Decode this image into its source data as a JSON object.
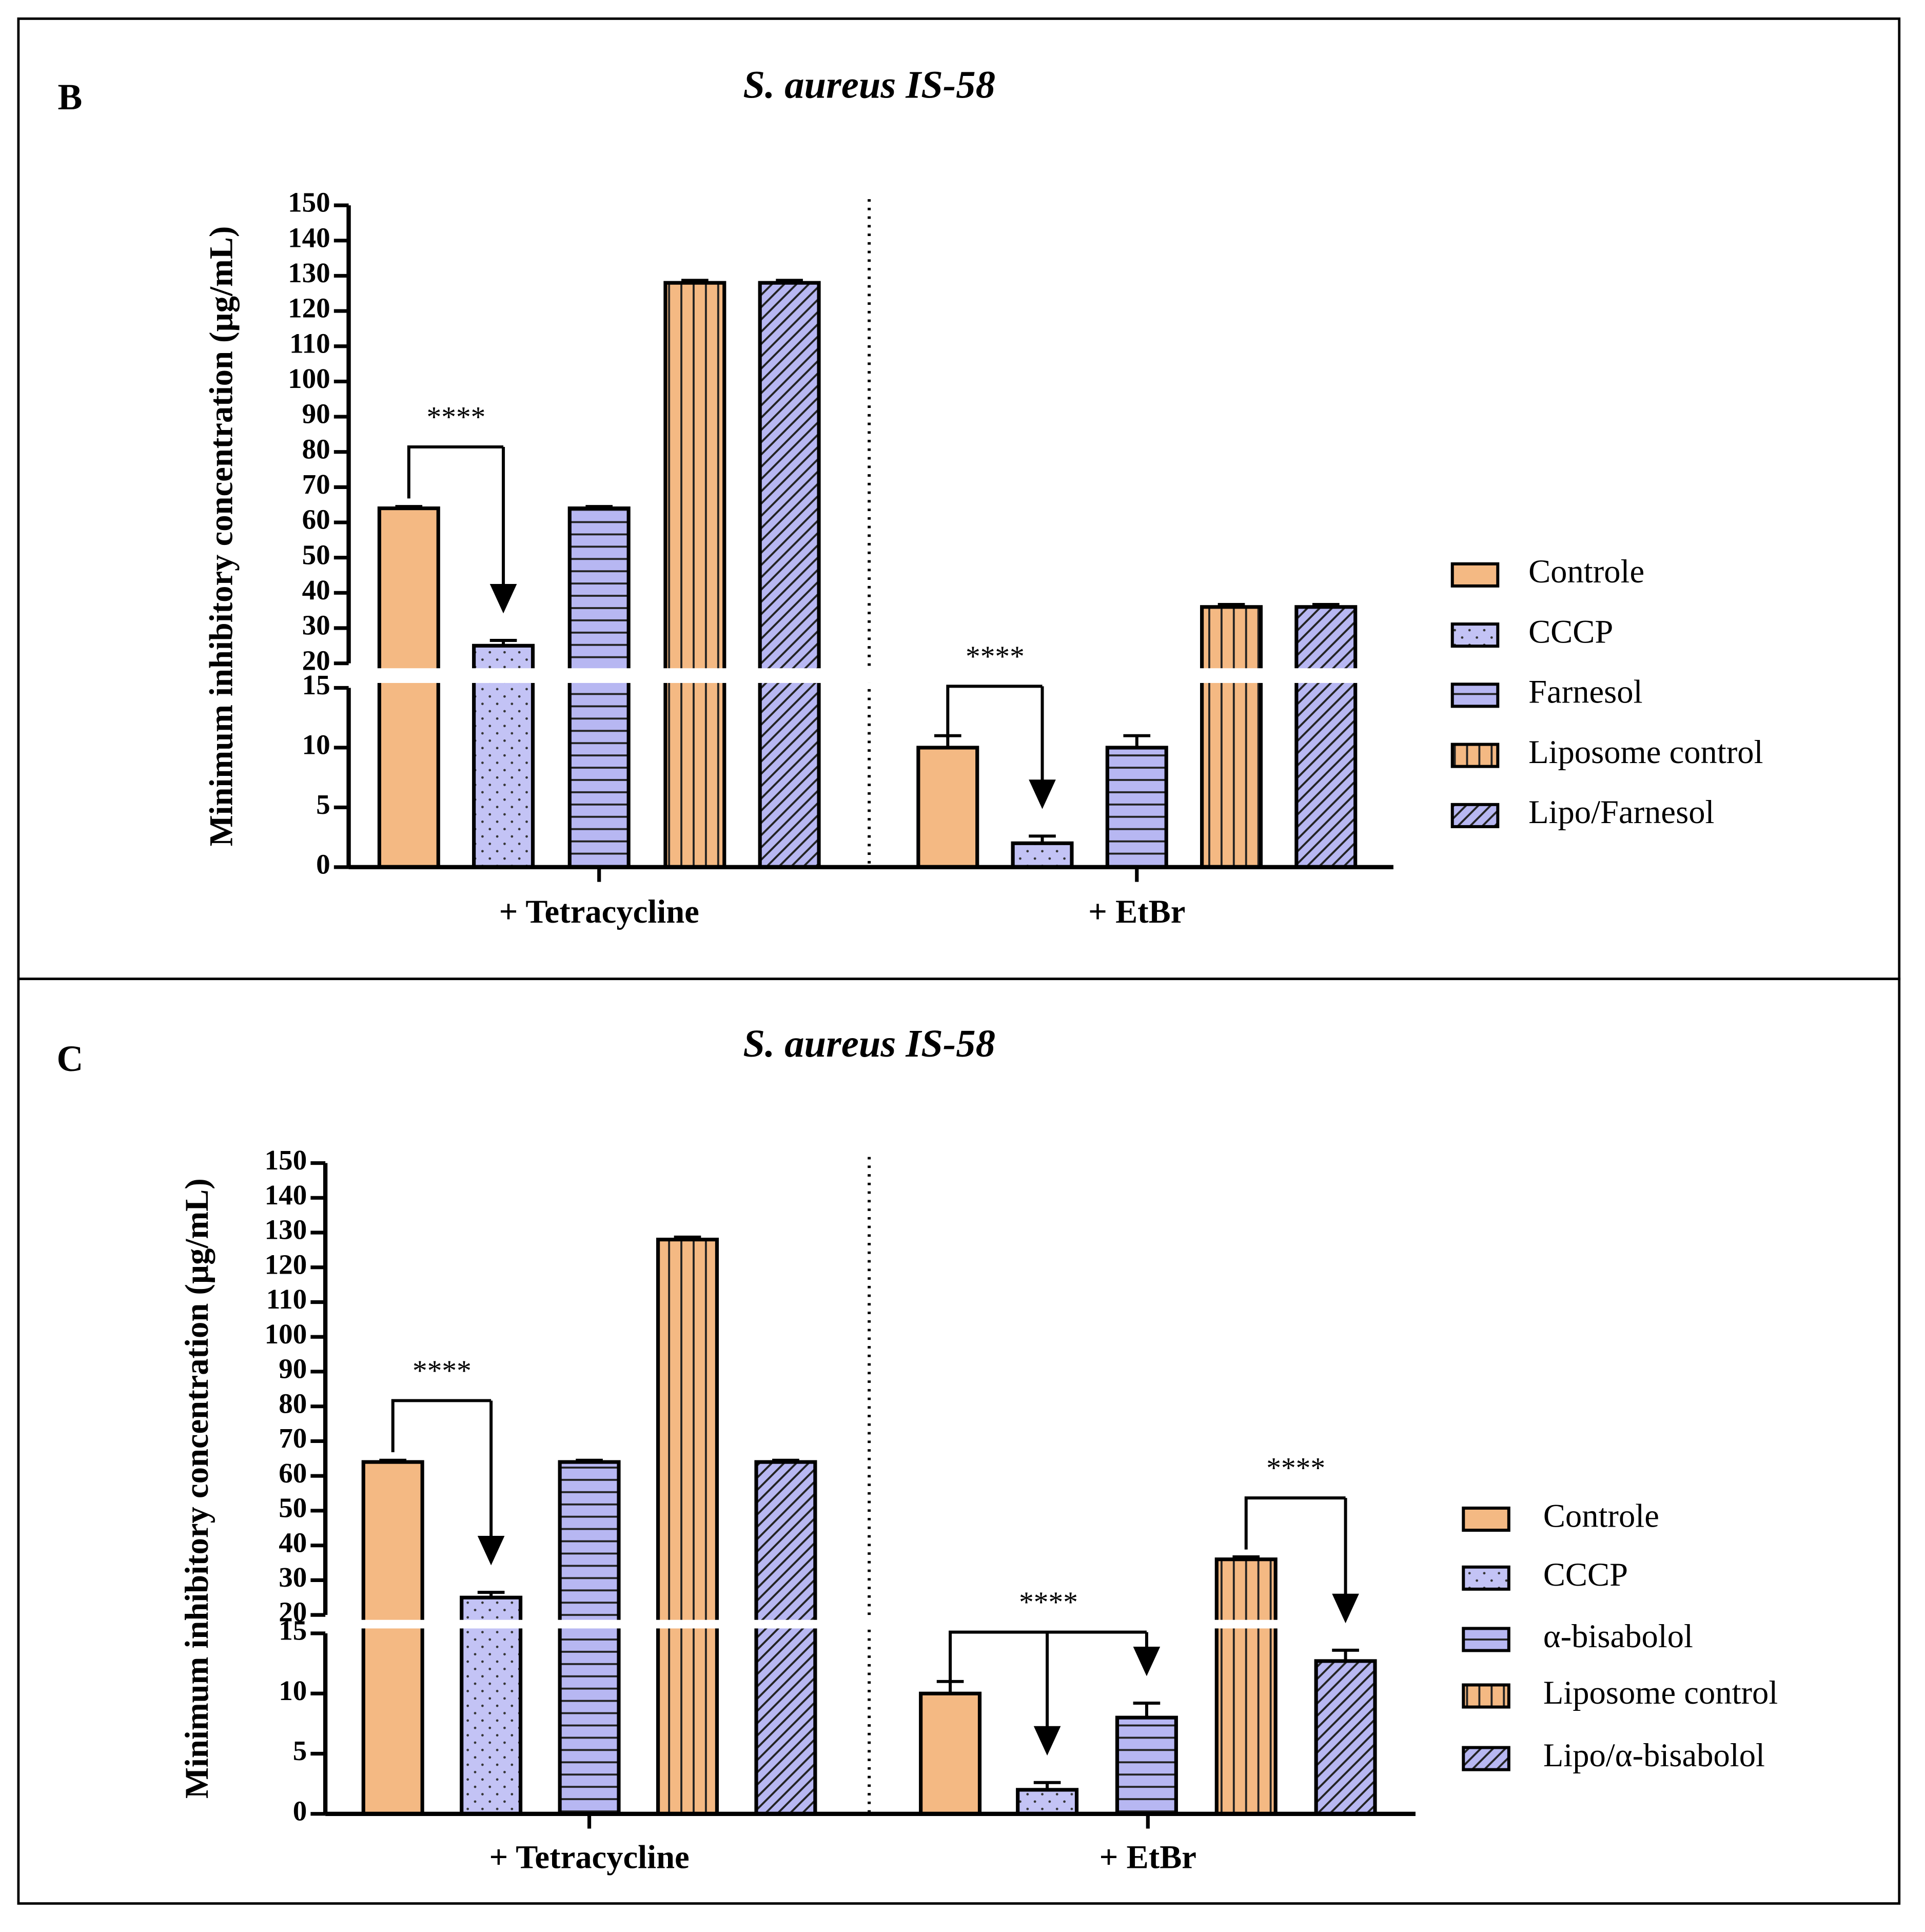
{
  "chart_data": [
    {
      "type": "bar",
      "panel_label": "B",
      "title": "S. aureus IS-58",
      "y_label": "Minimum inhibitory concentration (µg/mL)",
      "categories": [
        "+ Tetracycline",
        "+ EtBr"
      ],
      "series": [
        {
          "name": "Controle",
          "color": "#f4b983",
          "pattern": "solid",
          "values": [
            64,
            10
          ],
          "errors": [
            0.5,
            1
          ]
        },
        {
          "name": "CCCP",
          "color": "#c3c3f5",
          "pattern": "dots",
          "values": [
            25,
            2
          ],
          "errors": [
            1.5,
            0.6
          ]
        },
        {
          "name": "Farnesol",
          "color": "#b7b7f2",
          "pattern": "horizontal",
          "values": [
            64,
            10
          ],
          "errors": [
            0.5,
            1
          ]
        },
        {
          "name": "Liposome control",
          "color": "#f4b983",
          "pattern": "vertical",
          "values": [
            128,
            36
          ],
          "errors": [
            0.7,
            0.7
          ]
        },
        {
          "name": "Lipo/Farnesol",
          "color": "#b7b7f2",
          "pattern": "diagonal",
          "values": [
            128,
            36
          ],
          "errors": [
            0.7,
            0.7
          ]
        }
      ],
      "ylim": [
        0,
        150
      ],
      "y_break": [
        15,
        20
      ],
      "yticks": [
        0,
        5,
        10,
        15,
        20,
        30,
        40,
        50,
        60,
        70,
        80,
        90,
        100,
        110,
        120,
        130,
        140,
        150
      ],
      "annotations": [
        {
          "label": "****",
          "category": 0,
          "from": 0,
          "to": [
            1
          ]
        },
        {
          "label": "****",
          "category": 1,
          "from": 0,
          "to": [
            1
          ]
        }
      ]
    },
    {
      "type": "bar",
      "panel_label": "C",
      "title": "S. aureus IS-58",
      "y_label": "Minimum inhibitory concentration (µg/mL)",
      "categories": [
        "+ Tetracycline",
        "+ EtBr"
      ],
      "series": [
        {
          "name": "Controle",
          "color": "#f4b983",
          "pattern": "solid",
          "values": [
            64,
            10
          ],
          "errors": [
            0.5,
            1
          ]
        },
        {
          "name": "CCCP",
          "color": "#c3c3f5",
          "pattern": "dots",
          "values": [
            25,
            2
          ],
          "errors": [
            1.5,
            0.6
          ]
        },
        {
          "name": "α-bisabolol",
          "color": "#b7b7f2",
          "pattern": "horizontal",
          "values": [
            64,
            8
          ],
          "errors": [
            0.5,
            1.2
          ]
        },
        {
          "name": "Liposome control",
          "color": "#f4b983",
          "pattern": "vertical",
          "values": [
            128,
            36
          ],
          "errors": [
            0.7,
            0.7
          ]
        },
        {
          "name": "Lipo/α-bisabolol",
          "color": "#b7b7f2",
          "pattern": "diagonal",
          "values": [
            64,
            12.7
          ],
          "errors": [
            0.5,
            0.9
          ]
        }
      ],
      "ylim": [
        0,
        150
      ],
      "y_break": [
        15,
        20
      ],
      "yticks": [
        0,
        5,
        10,
        15,
        20,
        30,
        40,
        50,
        60,
        70,
        80,
        90,
        100,
        110,
        120,
        130,
        140,
        150
      ],
      "annotations": [
        {
          "label": "****",
          "category": 0,
          "from": 0,
          "to": [
            1
          ]
        },
        {
          "label": "****",
          "category": 1,
          "from": 0,
          "to": [
            1,
            2
          ]
        },
        {
          "label": "****",
          "category": 1,
          "from": 3,
          "to": [
            4
          ]
        }
      ]
    }
  ]
}
